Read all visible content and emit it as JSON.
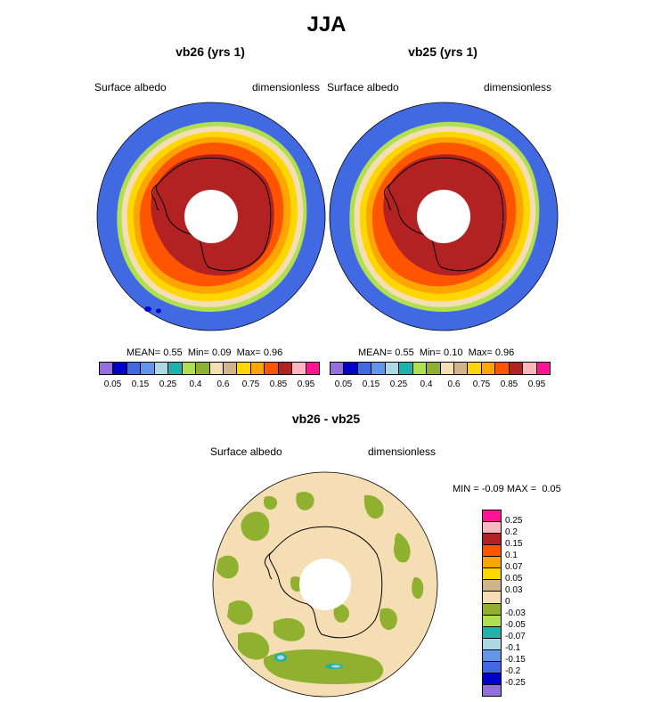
{
  "title": "JJA",
  "panels": [
    {
      "title": "vb26 (yrs 1)",
      "variable": "Surface albedo",
      "units": "dimensionless",
      "mean_label": "MEAN=",
      "mean": "0.55",
      "min_label": "Min=",
      "min": "0.09",
      "max_label": "Max=",
      "max": "0.96"
    },
    {
      "title": "vb25 (yrs 1)",
      "variable": "Surface albedo",
      "units": "dimensionless",
      "mean_label": "MEAN=",
      "mean": "0.55",
      "min_label": "Min=",
      "min": "0.10",
      "max_label": "Max=",
      "max": "0.96"
    }
  ],
  "diff": {
    "title": "vb26 - vb25",
    "variable": "Surface albedo",
    "units": "dimensionless",
    "min_label": "MIN =",
    "min": "-0.09",
    "max_label": "MAX =",
    "max": "0.05"
  },
  "colorbar_top": {
    "colors": [
      "#9370db",
      "#0000cd",
      "#4169e1",
      "#6495ed",
      "#add8e6",
      "#20b2aa",
      "#b0e050",
      "#90b030",
      "#f5deb3",
      "#d2b48c",
      "#ffd700",
      "#ffa500",
      "#ff5500",
      "#b22222",
      "#ffb6c1",
      "#ff1493"
    ],
    "labels": [
      "0.05",
      "0.15",
      "0.25",
      "0.4",
      "0.6",
      "0.75",
      "0.85",
      "0.95"
    ]
  },
  "colorbar_diff": {
    "colors": [
      "#ff1493",
      "#ffb6c1",
      "#b22222",
      "#ff5500",
      "#ffa500",
      "#ffd700",
      "#d2b48c",
      "#f5deb3",
      "#90b030",
      "#b0e050",
      "#20b2aa",
      "#add8e6",
      "#6495ed",
      "#4169e1",
      "#0000cd",
      "#9370db"
    ],
    "labels": [
      "0.25",
      "0.2",
      "0.15",
      "0.1",
      "0.07",
      "0.05",
      "0.03",
      "0",
      "-0.03",
      "-0.05",
      "-0.07",
      "-0.1",
      "-0.15",
      "-0.2",
      "-0.25"
    ]
  },
  "colors": {
    "ocean": "#4169e1",
    "ice_edge": "#f5deb3",
    "interior": "#b22222",
    "outer_ice": "#ff5500",
    "diff_base": "#f5deb3",
    "diff_green": "#90b030"
  }
}
